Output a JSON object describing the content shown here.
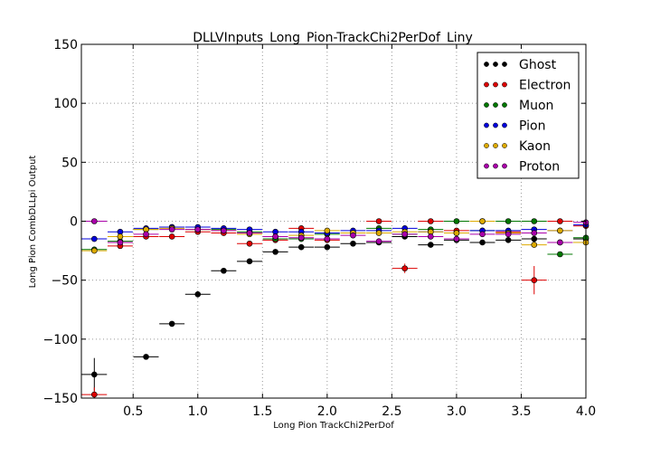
{
  "chart_data": {
    "type": "scatter",
    "title": "DLLVInputs_Long_Pion-TrackChi2PerDof_Liny",
    "xlabel": "Long Pion TrackChi2PerDof",
    "ylabel": "Long Pion CombDLLpi Output",
    "xlim": [
      0.1,
      4.0
    ],
    "ylim": [
      -150,
      150
    ],
    "xticks": [
      "0.5",
      "1.0",
      "1.5",
      "2.0",
      "2.5",
      "3.0",
      "3.5",
      "4.0"
    ],
    "yticks": [
      "150",
      "100",
      "50",
      "0",
      "−50",
      "−100",
      "−150"
    ],
    "xtick_values": [
      0.5,
      1.0,
      1.5,
      2.0,
      2.5,
      3.0,
      3.5,
      4.0
    ],
    "ytick_values": [
      150,
      100,
      50,
      0,
      -50,
      -100,
      -150
    ],
    "grid": true,
    "legend_position": "top-right",
    "bin_half_width": 0.0975,
    "series": [
      {
        "name": "Ghost",
        "color": "#000000",
        "x": [
          0.2,
          0.6,
          0.8,
          1.0,
          1.2,
          1.4,
          1.6,
          1.8,
          2.0,
          2.2,
          2.4,
          2.6,
          2.8,
          3.0,
          3.2,
          3.4,
          3.6,
          3.8,
          4.0
        ],
        "y": [
          -130,
          -115,
          -87,
          -62,
          -42,
          -34,
          -26,
          -22,
          -22,
          -19,
          -18,
          -13,
          -20,
          -16,
          -18,
          -16,
          -15,
          -18,
          -15
        ],
        "yerr": [
          14,
          1,
          1,
          1,
          1,
          1,
          1,
          1,
          1,
          1,
          1,
          1,
          1,
          1,
          1,
          1,
          1,
          1,
          1
        ]
      },
      {
        "name": "Electron",
        "color": "#dd0000",
        "x": [
          0.2,
          0.4,
          0.6,
          0.8,
          1.0,
          1.2,
          1.4,
          1.6,
          1.8,
          2.0,
          2.2,
          2.4,
          2.6,
          2.8,
          3.0,
          3.2,
          3.4,
          3.6,
          3.8,
          4.0
        ],
        "y": [
          -147,
          -21,
          -13,
          -13,
          -9,
          -10,
          -19,
          -16,
          -6,
          -16,
          -10,
          0,
          -40,
          0,
          -8,
          0,
          -9,
          -50,
          0,
          -4
        ],
        "yerr": [
          6,
          2,
          1,
          1,
          1,
          1,
          1,
          1,
          1,
          1,
          1,
          1,
          4,
          1,
          1,
          1,
          1,
          12,
          1,
          1
        ]
      },
      {
        "name": "Muon",
        "color": "#007700",
        "x": [
          0.2,
          0.4,
          0.6,
          0.8,
          1.0,
          1.2,
          1.4,
          1.6,
          1.8,
          2.0,
          2.2,
          2.4,
          2.6,
          2.8,
          3.0,
          3.2,
          3.4,
          3.6,
          3.8,
          4.0
        ],
        "y": [
          -24,
          -17,
          -7,
          -5,
          -7,
          -7,
          -9,
          -15,
          -15,
          -11,
          -10,
          -6,
          -11,
          -7,
          0,
          -8,
          0,
          0,
          -28,
          -14
        ],
        "yerr": [
          1,
          1,
          1,
          1,
          1,
          1,
          1,
          1,
          1,
          1,
          1,
          1,
          1,
          1,
          1,
          1,
          1,
          1,
          2,
          1
        ]
      },
      {
        "name": "Pion",
        "color": "#0000dd",
        "x": [
          0.2,
          0.4,
          0.6,
          0.8,
          1.0,
          1.2,
          1.4,
          1.6,
          1.8,
          2.0,
          2.2,
          2.4,
          2.6,
          2.8,
          3.0,
          3.2,
          3.4,
          3.6,
          3.8,
          4.0
        ],
        "y": [
          -15,
          -9,
          -6,
          -5,
          -5,
          -6,
          -7,
          -9,
          -9,
          -10,
          -8,
          -8,
          -6,
          -9,
          -10,
          -8,
          -8,
          -7,
          -8,
          -3
        ],
        "yerr": [
          1,
          1,
          1,
          1,
          1,
          1,
          1,
          1,
          1,
          1,
          1,
          1,
          1,
          1,
          1,
          1,
          1,
          1,
          1,
          1
        ]
      },
      {
        "name": "Kaon",
        "color": "#ddaa00",
        "x": [
          0.2,
          0.4,
          0.6,
          0.8,
          1.0,
          1.2,
          1.4,
          1.6,
          1.8,
          2.0,
          2.2,
          2.4,
          2.6,
          2.8,
          3.0,
          3.2,
          3.4,
          3.6,
          3.8,
          4.0
        ],
        "y": [
          -25,
          -13,
          -7,
          -6,
          -7,
          -8,
          -11,
          -13,
          -12,
          -8,
          -10,
          -10,
          -9,
          -9,
          -10,
          0,
          -10,
          -20,
          -8,
          -18
        ],
        "yerr": [
          2,
          1,
          1,
          1,
          1,
          1,
          1,
          1,
          1,
          1,
          1,
          1,
          1,
          1,
          1,
          1,
          1,
          1,
          1,
          1
        ]
      },
      {
        "name": "Proton",
        "color": "#aa00aa",
        "x": [
          0.2,
          0.4,
          0.6,
          0.8,
          1.0,
          1.2,
          1.4,
          1.6,
          1.8,
          2.0,
          2.2,
          2.4,
          2.6,
          2.8,
          3.0,
          3.2,
          3.4,
          3.6,
          3.8,
          4.0
        ],
        "y": [
          0,
          -18,
          -11,
          -7,
          -7,
          -8,
          -10,
          -13,
          -14,
          -15,
          -12,
          -17,
          -11,
          -13,
          -15,
          -11,
          -11,
          -10,
          -18,
          -1
        ],
        "yerr": [
          1,
          1,
          1,
          1,
          1,
          1,
          1,
          1,
          1,
          1,
          1,
          1,
          1,
          1,
          1,
          1,
          1,
          1,
          1,
          1
        ]
      }
    ]
  }
}
